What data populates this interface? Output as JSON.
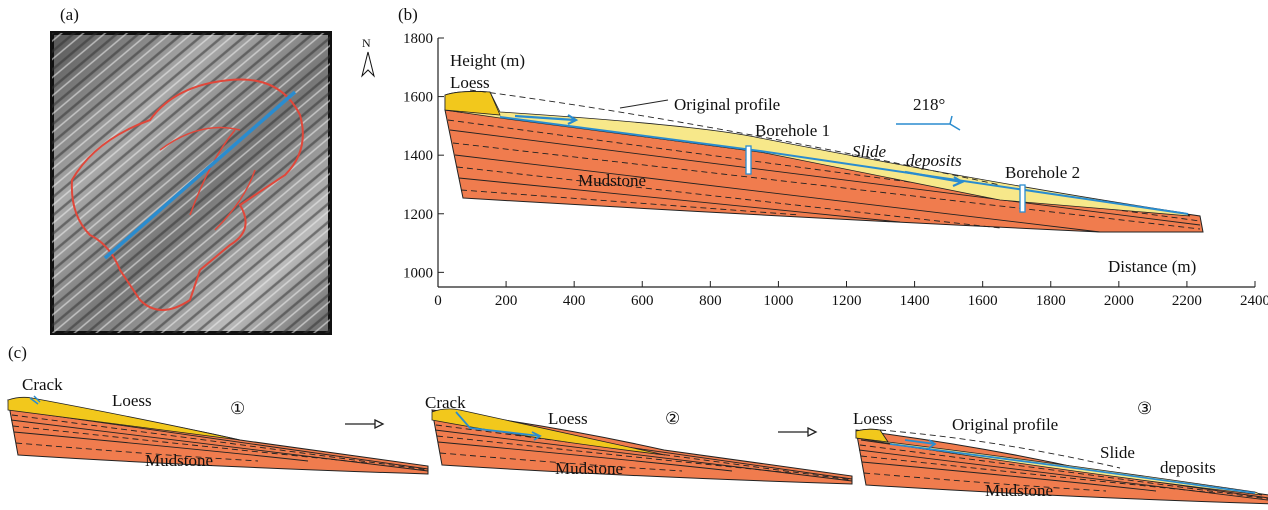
{
  "panel_a": {
    "label": "(a)",
    "north": "N"
  },
  "panel_b": {
    "label": "(b)",
    "y_axis_title": "Height (m)",
    "x_axis_title": "Distance (m)",
    "xlim": [
      0,
      2400
    ],
    "ylim": [
      950,
      1800
    ],
    "xticks": [
      0,
      200,
      400,
      600,
      800,
      1000,
      1200,
      1400,
      1600,
      1800,
      2000,
      2200,
      2400
    ],
    "yticks": [
      1000,
      1200,
      1400,
      1600,
      1800
    ],
    "loess": "Loess",
    "original_profile": "Original profile",
    "direction": "218°",
    "borehole_1": "Borehole 1",
    "slide_word": "Slide",
    "deposits_word": "deposits",
    "borehole_2": "Borehole 2",
    "mudstone": "Mudstone"
  },
  "panel_c": {
    "label": "(c)",
    "stages": [
      {
        "number": "①",
        "crack": "Crack",
        "loess": "Loess",
        "mudstone": "Mudstone"
      },
      {
        "number": "②",
        "crack": "Crack",
        "loess": "Loess",
        "mudstone": "Mudstone"
      },
      {
        "number": "③",
        "loess": "Loess",
        "original_profile": "Original profile",
        "slide": "Slide",
        "deposits": "deposits",
        "mudstone": "Mudstone"
      }
    ]
  }
}
